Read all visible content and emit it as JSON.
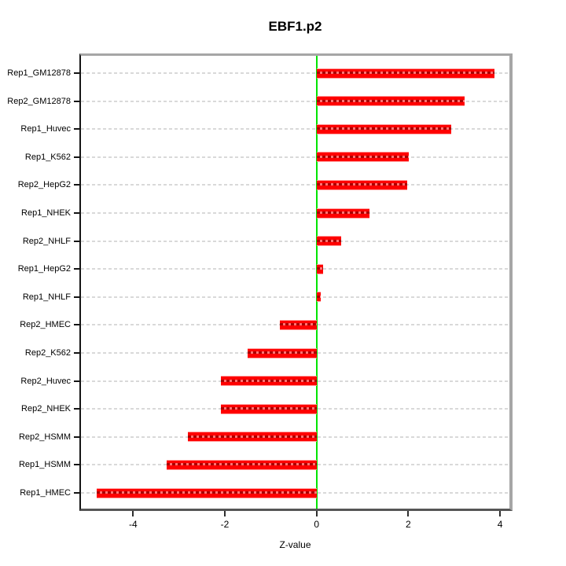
{
  "chart_data": {
    "type": "bar",
    "orientation": "horizontal",
    "title": "EBF1.p2",
    "xlabel": "Z-value",
    "ylabel": "",
    "categories": [
      "Rep1_GM12878",
      "Rep2_GM12878",
      "Rep1_Huvec",
      "Rep1_K562",
      "Rep2_HepG2",
      "Rep1_NHEK",
      "Rep2_NHLF",
      "Rep1_HepG2",
      "Rep1_NHLF",
      "Rep2_HMEC",
      "Rep2_K562",
      "Rep2_Huvec",
      "Rep2_NHEK",
      "Rep2_HSMM",
      "Rep1_HSMM",
      "Rep1_HMEC"
    ],
    "values": [
      3.87,
      3.23,
      2.94,
      2.01,
      1.98,
      1.15,
      0.54,
      0.14,
      0.09,
      -0.8,
      -1.51,
      -2.09,
      -2.09,
      -2.8,
      -3.26,
      -4.79
    ],
    "x_ticks": [
      -4,
      -2,
      0,
      2,
      4
    ],
    "x_tick_labels": [
      "-4",
      "-2",
      "0",
      "2",
      "4"
    ],
    "xlim": [
      -5.14,
      4.2
    ],
    "zero_line_at": 0,
    "grid": true,
    "legend": false,
    "colors": {
      "bar": "#ff0000",
      "bar_edge": "#ff9e9e",
      "zero_line": "#00e400",
      "grid": "#d9d9d9",
      "frame_light": "#a6a6a6",
      "frame_dark": "#565656",
      "axis_left": "#141414",
      "text": "#000000",
      "background": "#ffffff"
    }
  }
}
